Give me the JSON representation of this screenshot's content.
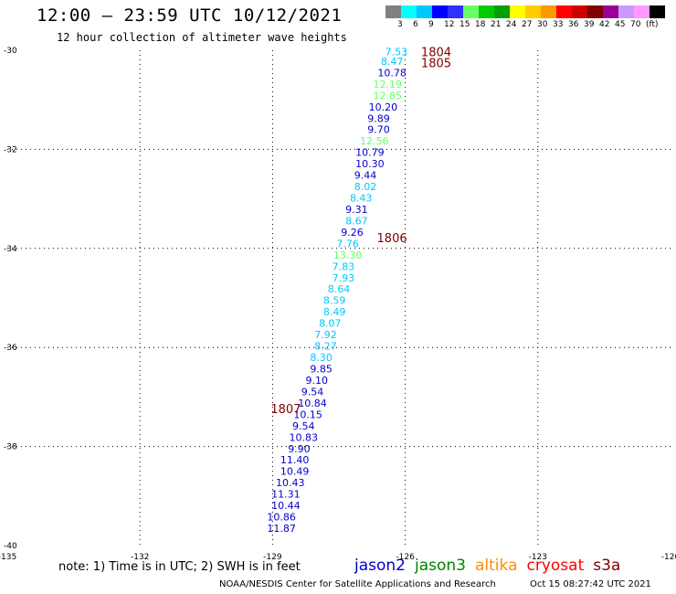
{
  "header": {
    "title": "12:00 – 23:59 UTC 10/12/2021",
    "subtitle": "12 hour collection of altimeter wave heights"
  },
  "colorbar": {
    "colors": [
      "#808080",
      "#00ffff",
      "#00c8ff",
      "#0000ff",
      "#3030ff",
      "#66ff66",
      "#00cc00",
      "#00a000",
      "#ffff00",
      "#ffcc00",
      "#ff9900",
      "#ff0000",
      "#cc0000",
      "#800000",
      "#990099",
      "#cc99ff",
      "#ff99ff",
      "#000000"
    ],
    "labels": [
      "3",
      "6",
      "9",
      "12",
      "15",
      "18",
      "21",
      "24",
      "27",
      "30",
      "33",
      "36",
      "39",
      "42",
      "45",
      "70",
      "(ft)"
    ]
  },
  "footer": {
    "note": "note:  1) Time is in UTC; 2) SWH is in feet",
    "credit": "NOAA/NESDIS Center for Satellite Applications and Research",
    "timestamp": "Oct 15 08:27:42 UTC 2021"
  },
  "satellites": [
    {
      "name": "jason2",
      "color": "#0000cc"
    },
    {
      "name": "jason3",
      "color": "#008000"
    },
    {
      "name": "altika",
      "color": "#ff8c00"
    },
    {
      "name": "cryosat",
      "color": "#ff0000"
    },
    {
      "name": "s3a",
      "color": "#800000"
    }
  ],
  "chart_data": {
    "type": "scatter",
    "title": "12:00 – 23:59 UTC 10/12/2021",
    "xlim": [
      -135,
      -120
    ],
    "ylim": [
      -40,
      -30
    ],
    "x_ticks": [
      -135,
      -132,
      -129,
      -126,
      -123,
      -120
    ],
    "x_tick_labels": [
      "-135",
      "-132",
      "-129",
      "-126",
      "-123",
      "-120"
    ],
    "y_ticks": [
      -30,
      -32,
      -34,
      -36,
      -38,
      -40
    ],
    "y_tick_labels": [
      "-30",
      "-32",
      "-34",
      "-36",
      "-38",
      "-40"
    ],
    "grid": true,
    "time_labels": [
      {
        "text": "1804",
        "lon": -125.3,
        "lat": -30.03
      },
      {
        "text": "1805",
        "lon": -125.3,
        "lat": -30.25
      },
      {
        "text": "1806",
        "lon": -126.3,
        "lat": -33.78
      },
      {
        "text": "1807",
        "lon": -128.7,
        "lat": -37.23
      }
    ],
    "points": [
      {
        "label": "7.53",
        "lon": -126.2,
        "lat": -30.03,
        "color": "#00c8ff"
      },
      {
        "label": "8.47",
        "lon": -126.3,
        "lat": -30.22,
        "color": "#00c8ff"
      },
      {
        "label": "10.78",
        "lon": -126.3,
        "lat": -30.45,
        "color": "#0000cc"
      },
      {
        "label": "12.19",
        "lon": -126.4,
        "lat": -30.68,
        "color": "#66ff66"
      },
      {
        "label": "12.85",
        "lon": -126.4,
        "lat": -30.91,
        "color": "#66ff66"
      },
      {
        "label": "10.20",
        "lon": -126.5,
        "lat": -31.14,
        "color": "#0000cc"
      },
      {
        "label": "9.89",
        "lon": -126.6,
        "lat": -31.37,
        "color": "#0000cc"
      },
      {
        "label": "9.70",
        "lon": -126.6,
        "lat": -31.6,
        "color": "#0000cc"
      },
      {
        "label": "12.56",
        "lon": -126.7,
        "lat": -31.83,
        "color": "#66ff66"
      },
      {
        "label": "10.79",
        "lon": -126.8,
        "lat": -32.06,
        "color": "#0000cc"
      },
      {
        "label": "10.30",
        "lon": -126.8,
        "lat": -32.29,
        "color": "#0000cc"
      },
      {
        "label": "9.44",
        "lon": -126.9,
        "lat": -32.52,
        "color": "#0000cc"
      },
      {
        "label": "8.02",
        "lon": -126.9,
        "lat": -32.75,
        "color": "#00c8ff"
      },
      {
        "label": "8.43",
        "lon": -127.0,
        "lat": -32.98,
        "color": "#00c8ff"
      },
      {
        "label": "9.31",
        "lon": -127.1,
        "lat": -33.21,
        "color": "#0000cc"
      },
      {
        "label": "8.67",
        "lon": -127.1,
        "lat": -33.44,
        "color": "#00c8ff"
      },
      {
        "label": "9.26",
        "lon": -127.2,
        "lat": -33.67,
        "color": "#0000cc"
      },
      {
        "label": "7.76",
        "lon": -127.3,
        "lat": -33.9,
        "color": "#00c8ff"
      },
      {
        "label": "13.30",
        "lon": -127.3,
        "lat": -34.13,
        "color": "#66ff66"
      },
      {
        "label": "7.83",
        "lon": -127.4,
        "lat": -34.36,
        "color": "#00c8ff"
      },
      {
        "label": "7.93",
        "lon": -127.4,
        "lat": -34.59,
        "color": "#00c8ff"
      },
      {
        "label": "8.64",
        "lon": -127.5,
        "lat": -34.82,
        "color": "#00c8ff"
      },
      {
        "label": "8.59",
        "lon": -127.6,
        "lat": -35.05,
        "color": "#00c8ff"
      },
      {
        "label": "8.49",
        "lon": -127.6,
        "lat": -35.28,
        "color": "#00c8ff"
      },
      {
        "label": "8.07",
        "lon": -127.7,
        "lat": -35.51,
        "color": "#00c8ff"
      },
      {
        "label": "7.92",
        "lon": -127.8,
        "lat": -35.74,
        "color": "#00c8ff"
      },
      {
        "label": "8.27",
        "lon": -127.8,
        "lat": -35.97,
        "color": "#00c8ff"
      },
      {
        "label": "8.30",
        "lon": -127.9,
        "lat": -36.2,
        "color": "#00c8ff"
      },
      {
        "label": "9.85",
        "lon": -127.9,
        "lat": -36.43,
        "color": "#0000cc"
      },
      {
        "label": "9.10",
        "lon": -128.0,
        "lat": -36.66,
        "color": "#0000cc"
      },
      {
        "label": "9.54",
        "lon": -128.1,
        "lat": -36.89,
        "color": "#0000cc"
      },
      {
        "label": "10.84",
        "lon": -128.1,
        "lat": -37.12,
        "color": "#0000cc"
      },
      {
        "label": "10.15",
        "lon": -128.2,
        "lat": -37.35,
        "color": "#0000cc"
      },
      {
        "label": "9.54",
        "lon": -128.3,
        "lat": -37.58,
        "color": "#0000cc"
      },
      {
        "label": "10.83",
        "lon": -128.3,
        "lat": -37.81,
        "color": "#0000cc"
      },
      {
        "label": "9.90",
        "lon": -128.4,
        "lat": -38.04,
        "color": "#0000cc"
      },
      {
        "label": "11.40",
        "lon": -128.5,
        "lat": -38.27,
        "color": "#0000cc"
      },
      {
        "label": "10.49",
        "lon": -128.5,
        "lat": -38.5,
        "color": "#0000cc"
      },
      {
        "label": "10.43",
        "lon": -128.6,
        "lat": -38.73,
        "color": "#0000cc"
      },
      {
        "label": "11.31",
        "lon": -128.7,
        "lat": -38.96,
        "color": "#0000cc"
      },
      {
        "label": "10.44",
        "lon": -128.7,
        "lat": -39.19,
        "color": "#0000cc"
      },
      {
        "label": "10.86",
        "lon": -128.8,
        "lat": -39.42,
        "color": "#0000cc"
      },
      {
        "label": "11.87",
        "lon": -128.8,
        "lat": -39.65,
        "color": "#0000cc"
      }
    ]
  }
}
